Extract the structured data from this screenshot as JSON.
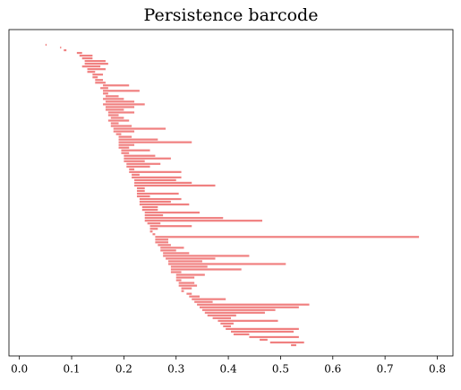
{
  "chart_data": {
    "type": "barcode",
    "title": "Persistence barcode",
    "color": "#f08080",
    "xlim": [
      -0.02,
      0.83
    ],
    "xticks": [
      {
        "value": 0,
        "label": "0.0"
      },
      0.1,
      0.2,
      0.3,
      0.4,
      0.5,
      0.6,
      0.7,
      0.8
    ],
    "births": [
      0.05,
      0.078,
      0.085,
      0.11,
      0.115,
      0.12,
      0.125,
      0.125,
      0.12,
      0.13,
      0.13,
      0.14,
      0.14,
      0.145,
      0.145,
      0.16,
      0.155,
      0.16,
      0.16,
      0.165,
      0.16,
      0.165,
      0.16,
      0.165,
      0.165,
      0.17,
      0.17,
      0.175,
      0.17,
      0.175,
      0.175,
      0.18,
      0.18,
      0.185,
      0.19,
      0.19,
      0.19,
      0.19,
      0.19,
      0.195,
      0.195,
      0.2,
      0.2,
      0.2,
      0.205,
      0.205,
      0.21,
      0.21,
      0.215,
      0.215,
      0.22,
      0.22,
      0.22,
      0.225,
      0.225,
      0.225,
      0.225,
      0.23,
      0.23,
      0.23,
      0.235,
      0.235,
      0.24,
      0.24,
      0.24,
      0.24,
      0.245,
      0.25,
      0.25,
      0.25,
      0.255,
      0.26,
      0.26,
      0.26,
      0.265,
      0.27,
      0.27,
      0.275,
      0.275,
      0.28,
      0.285,
      0.285,
      0.29,
      0.29,
      0.29,
      0.3,
      0.3,
      0.3,
      0.305,
      0.305,
      0.31,
      0.31,
      0.32,
      0.325,
      0.33,
      0.335,
      0.34,
      0.345,
      0.35,
      0.355,
      0.36,
      0.37,
      0.38,
      0.385,
      0.39,
      0.395,
      0.405,
      0.41,
      0.44,
      0.46,
      0.48,
      0.52
    ],
    "deaths": [
      0.052,
      0.08,
      0.09,
      0.12,
      0.14,
      0.14,
      0.165,
      0.17,
      0.155,
      0.165,
      0.145,
      0.16,
      0.15,
      0.16,
      0.165,
      0.21,
      0.17,
      0.23,
      0.17,
      0.19,
      0.2,
      0.22,
      0.24,
      0.22,
      0.2,
      0.22,
      0.19,
      0.2,
      0.21,
      0.19,
      0.215,
      0.28,
      0.22,
      0.195,
      0.215,
      0.265,
      0.33,
      0.22,
      0.21,
      0.25,
      0.21,
      0.26,
      0.29,
      0.24,
      0.27,
      0.25,
      0.22,
      0.31,
      0.23,
      0.31,
      0.3,
      0.33,
      0.375,
      0.24,
      0.24,
      0.305,
      0.25,
      0.31,
      0.29,
      0.325,
      0.265,
      0.265,
      0.345,
      0.275,
      0.39,
      0.465,
      0.27,
      0.33,
      0.265,
      0.255,
      0.26,
      0.765,
      0.285,
      0.285,
      0.29,
      0.315,
      0.3,
      0.325,
      0.44,
      0.375,
      0.35,
      0.51,
      0.36,
      0.425,
      0.31,
      0.355,
      0.335,
      0.31,
      0.335,
      0.34,
      0.33,
      0.315,
      0.33,
      0.345,
      0.395,
      0.37,
      0.555,
      0.535,
      0.49,
      0.47,
      0.415,
      0.405,
      0.495,
      0.41,
      0.405,
      0.535,
      0.525,
      0.44,
      0.535,
      0.475,
      0.545,
      0.53
    ]
  }
}
